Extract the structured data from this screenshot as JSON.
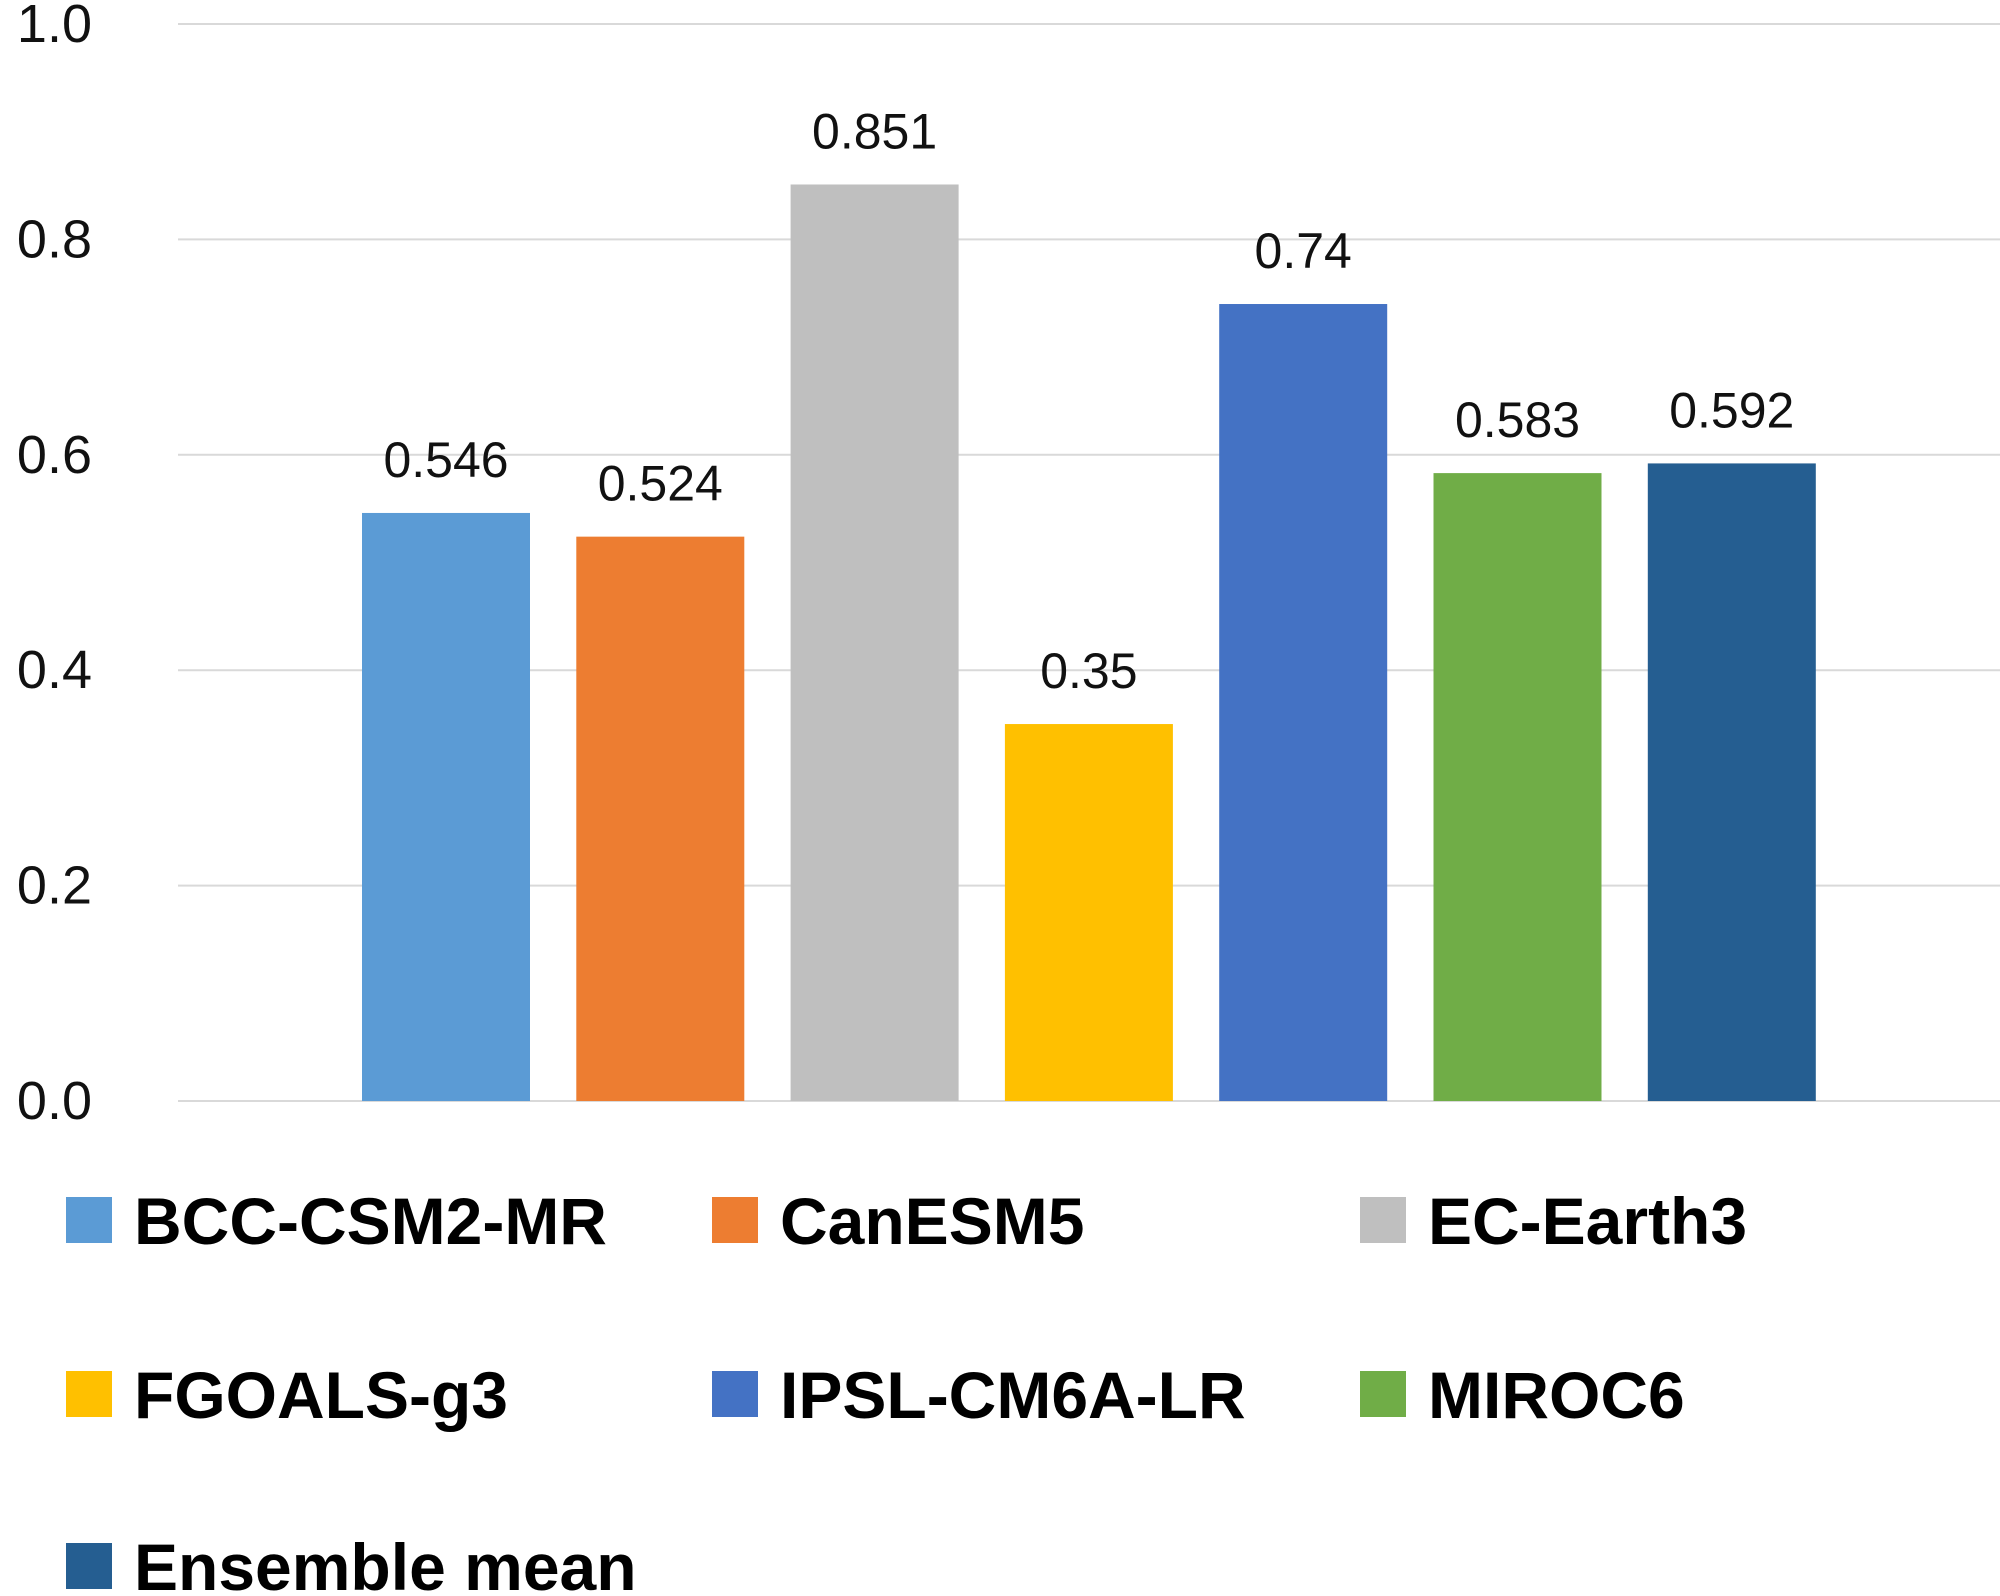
{
  "chart_data": {
    "type": "bar",
    "title": "",
    "xlabel": "",
    "ylabel": "",
    "ylim": [
      0,
      1.0
    ],
    "yticks": [
      "0.0",
      "0.2",
      "0.4",
      "0.6",
      "0.8",
      "1.0"
    ],
    "grid": true,
    "legend_position": "bottom",
    "series": [
      {
        "name": "BCC-CSM2-MR",
        "value": 0.546,
        "label": "0.546",
        "color": "#5B9BD5"
      },
      {
        "name": "CanESM5",
        "value": 0.524,
        "label": "0.524",
        "color": "#ED7D31"
      },
      {
        "name": "EC-Earth3",
        "value": 0.851,
        "label": "0.851",
        "color": "#BFBFBF"
      },
      {
        "name": "FGOALS-g3",
        "value": 0.35,
        "label": "0.35",
        "color": "#FFC000"
      },
      {
        "name": "IPSL-CM6A-LR",
        "value": 0.74,
        "label": "0.74",
        "color": "#4472C4"
      },
      {
        "name": "MIROC6",
        "value": 0.583,
        "label": "0.583",
        "color": "#70AD47"
      },
      {
        "name": "Ensemble mean",
        "value": 0.592,
        "label": "0.592",
        "color": "#255E91"
      }
    ]
  }
}
